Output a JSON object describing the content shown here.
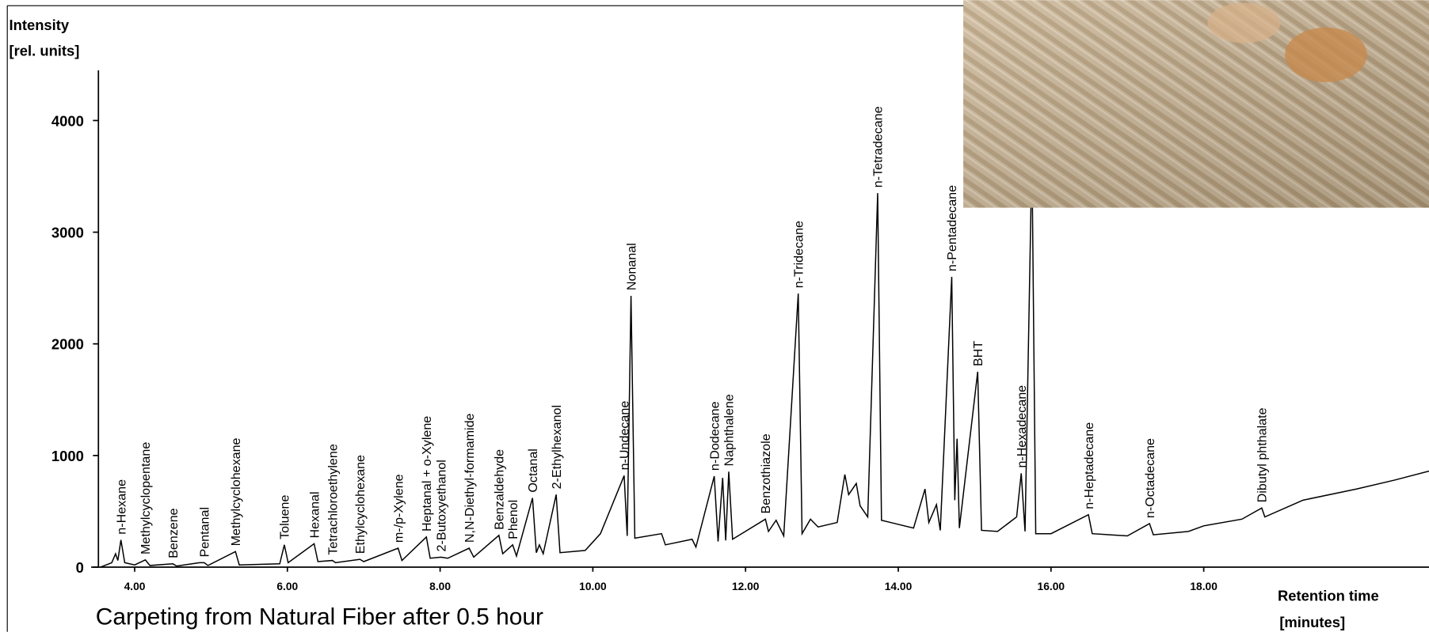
{
  "chart_data": {
    "type": "line",
    "title": "Carpeting from Natural Fiber after 0.5 hour",
    "y_label": "Intensity",
    "y_unit": "[rel. units]",
    "x_label": "Retention time",
    "x_unit": "[minutes]",
    "xlim": [
      3.43,
      20.95
    ],
    "ylim": [
      0,
      4450
    ],
    "xticks": [
      {
        "value": 4,
        "label": "4.00"
      },
      {
        "value": 6,
        "label": "6.00"
      },
      {
        "value": 8,
        "label": "8.00"
      },
      {
        "value": 10,
        "label": "10.00"
      },
      {
        "value": 12,
        "label": "12.00"
      },
      {
        "value": 14,
        "label": "14.00"
      },
      {
        "value": 16,
        "label": "16.00"
      },
      {
        "value": 18,
        "label": "18.00"
      }
    ],
    "yticks": [
      0,
      1000,
      2000,
      3000,
      4000
    ],
    "series": [
      {
        "color": "#000000",
        "x": [
          3.55,
          3.7,
          3.75,
          3.78,
          3.82,
          3.87,
          4.0,
          4.14,
          4.2,
          4.5,
          4.55,
          4.85,
          4.91,
          4.96,
          5.32,
          5.37,
          5.9,
          5.96,
          6.01,
          6.35,
          6.4,
          6.59,
          6.63,
          6.95,
          7.0,
          7.45,
          7.5,
          7.82,
          7.87,
          8.01,
          8.1,
          8.38,
          8.44,
          8.77,
          8.82,
          8.95,
          9.0,
          9.21,
          9.26,
          9.3,
          9.35,
          9.52,
          9.57,
          9.9,
          10.1,
          10.41,
          10.45,
          10.5,
          10.55,
          10.9,
          10.95,
          11.3,
          11.35,
          11.59,
          11.64,
          11.7,
          11.74,
          11.78,
          11.83,
          12.26,
          12.3,
          12.4,
          12.5,
          12.69,
          12.74,
          12.85,
          12.95,
          13.2,
          13.3,
          13.35,
          13.45,
          13.5,
          13.6,
          13.73,
          13.78,
          13.9,
          14.2,
          14.35,
          14.4,
          14.5,
          14.55,
          14.7,
          14.74,
          14.77,
          14.8,
          15.04,
          15.09,
          15.3,
          15.55,
          15.61,
          15.66,
          15.75,
          15.8,
          16.0,
          16.49,
          16.54,
          17.0,
          17.29,
          17.34,
          17.8,
          18.0,
          18.5,
          18.76,
          18.8,
          19.3,
          20.0,
          20.5,
          20.95
        ],
        "values": [
          0,
          40,
          120,
          60,
          244,
          40,
          20,
          65,
          15,
          30,
          10,
          40,
          40,
          15,
          140,
          20,
          30,
          200,
          40,
          210,
          50,
          60,
          40,
          70,
          50,
          170,
          60,
          270,
          80,
          90,
          80,
          170,
          90,
          285,
          120,
          200,
          100,
          620,
          130,
          200,
          120,
          650,
          130,
          150,
          300,
          820,
          280,
          2430,
          260,
          300,
          200,
          250,
          180,
          815,
          230,
          800,
          240,
          855,
          250,
          430,
          320,
          420,
          280,
          2450,
          300,
          430,
          360,
          400,
          830,
          650,
          750,
          550,
          450,
          3350,
          420,
          400,
          350,
          700,
          400,
          560,
          330,
          2600,
          600,
          1150,
          350,
          1750,
          330,
          320,
          450,
          840,
          320,
          3700,
          300,
          300,
          470,
          300,
          280,
          390,
          290,
          320,
          370,
          430,
          530,
          450,
          600,
          700,
          780,
          860
        ]
      }
    ],
    "annotations": [
      {
        "text": "n-Hexane",
        "x": 3.82,
        "y": 244
      },
      {
        "text": "Methylcyclopentane",
        "x": 4.14,
        "y": 65
      },
      {
        "text": "Benzene",
        "x": 4.5,
        "y": 30
      },
      {
        "text": "Pentanal",
        "x": 4.91,
        "y": 40
      },
      {
        "text": "Methylcyclohexane",
        "x": 5.32,
        "y": 140
      },
      {
        "text": "Toluene",
        "x": 5.96,
        "y": 200
      },
      {
        "text": "Hexanal",
        "x": 6.35,
        "y": 210
      },
      {
        "text": "Tetrachloroethylene",
        "x": 6.59,
        "y": 60
      },
      {
        "text": "Ethylcyclohexane",
        "x": 6.95,
        "y": 70
      },
      {
        "text": "m-/p-Xylene",
        "x": 7.45,
        "y": 170
      },
      {
        "text": "Heptanal + o-Xylene",
        "x": 7.82,
        "y": 270
      },
      {
        "text": "2-Butoxyethanol",
        "x": 8.01,
        "y": 90
      },
      {
        "text": "N,N-Diethyl-formamide",
        "x": 8.38,
        "y": 170
      },
      {
        "text": "Benzaldehyde",
        "x": 8.77,
        "y": 285
      },
      {
        "text": "Phenol",
        "x": 8.95,
        "y": 200
      },
      {
        "text": "Octanal",
        "x": 9.21,
        "y": 620
      },
      {
        "text": "2-Ethylhexanol",
        "x": 9.52,
        "y": 650
      },
      {
        "text": "n-Undecane",
        "x": 10.41,
        "y": 820
      },
      {
        "text": "Nonanal",
        "x": 10.5,
        "y": 2430
      },
      {
        "text": "n-Dodecane",
        "x": 11.59,
        "y": 815
      },
      {
        "text": "Naphthalene",
        "x": 11.78,
        "y": 855
      },
      {
        "text": "Benzothiazole",
        "x": 12.26,
        "y": 430
      },
      {
        "text": "n-Tridecane",
        "x": 12.69,
        "y": 2450
      },
      {
        "text": "n-Tetradecane",
        "x": 13.73,
        "y": 3350
      },
      {
        "text": "n-Pentadecane",
        "x": 14.7,
        "y": 2600
      },
      {
        "text": "BHT",
        "x": 15.04,
        "y": 1750
      },
      {
        "text": "n-Hexadecane",
        "x": 15.61,
        "y": 840
      },
      {
        "text": "n-Heptadecane",
        "x": 16.49,
        "y": 470
      },
      {
        "text": "n-Octadecane",
        "x": 17.29,
        "y": 390
      },
      {
        "text": "Dibutyl phthalate",
        "x": 18.76,
        "y": 530
      }
    ]
  }
}
